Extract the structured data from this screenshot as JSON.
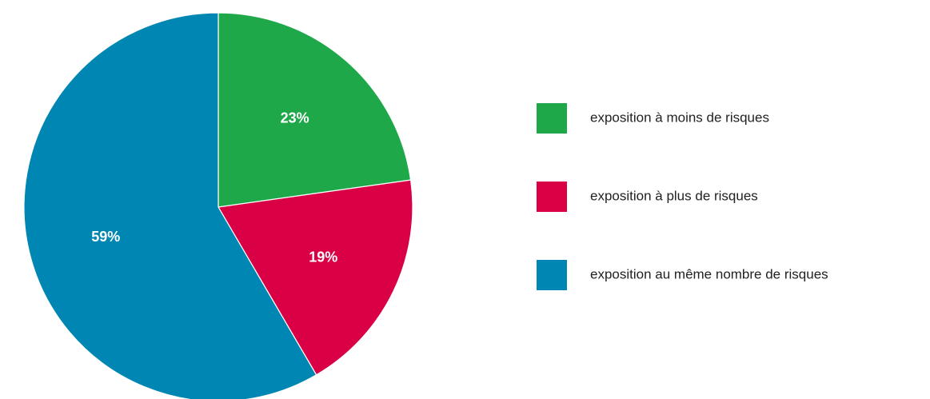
{
  "chart_data": {
    "type": "pie",
    "categories": [
      "exposition à moins de risques",
      "exposition à plus de risques",
      "exposition au même nombre de risques"
    ],
    "values": [
      23,
      19,
      59
    ],
    "value_labels": [
      "23%",
      "19%",
      "59%"
    ],
    "colors": [
      "#1ea84a",
      "#d90045",
      "#0086b3"
    ],
    "legend": "right"
  }
}
